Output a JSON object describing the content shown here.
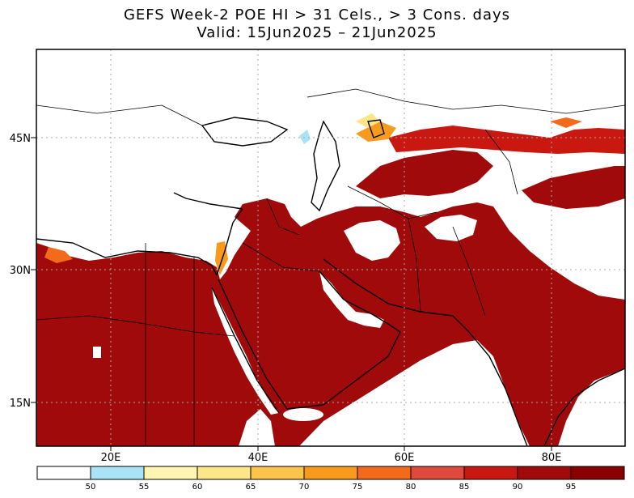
{
  "title": {
    "line1": "GEFS Week-2 POE HI > 31 Cels., > 3 Cons. days",
    "line2": "Valid: 15Jun2025 – 21Jun2025"
  },
  "map": {
    "lat_labels": [
      "45N",
      "30N",
      "15N"
    ],
    "lon_labels": [
      "20E",
      "40E",
      "60E",
      "80E"
    ]
  },
  "colorbar": {
    "thresholds": [
      "50",
      "55",
      "60",
      "65",
      "70",
      "75",
      "80",
      "85",
      "90",
      "95"
    ],
    "colors": [
      "#ffffff",
      "#a8e4f5",
      "#fff5b0",
      "#fde58a",
      "#fcc44c",
      "#f89a1c",
      "#f26a1a",
      "#e04a3c",
      "#c81810",
      "#a00a0a",
      "#8a0000"
    ]
  }
}
